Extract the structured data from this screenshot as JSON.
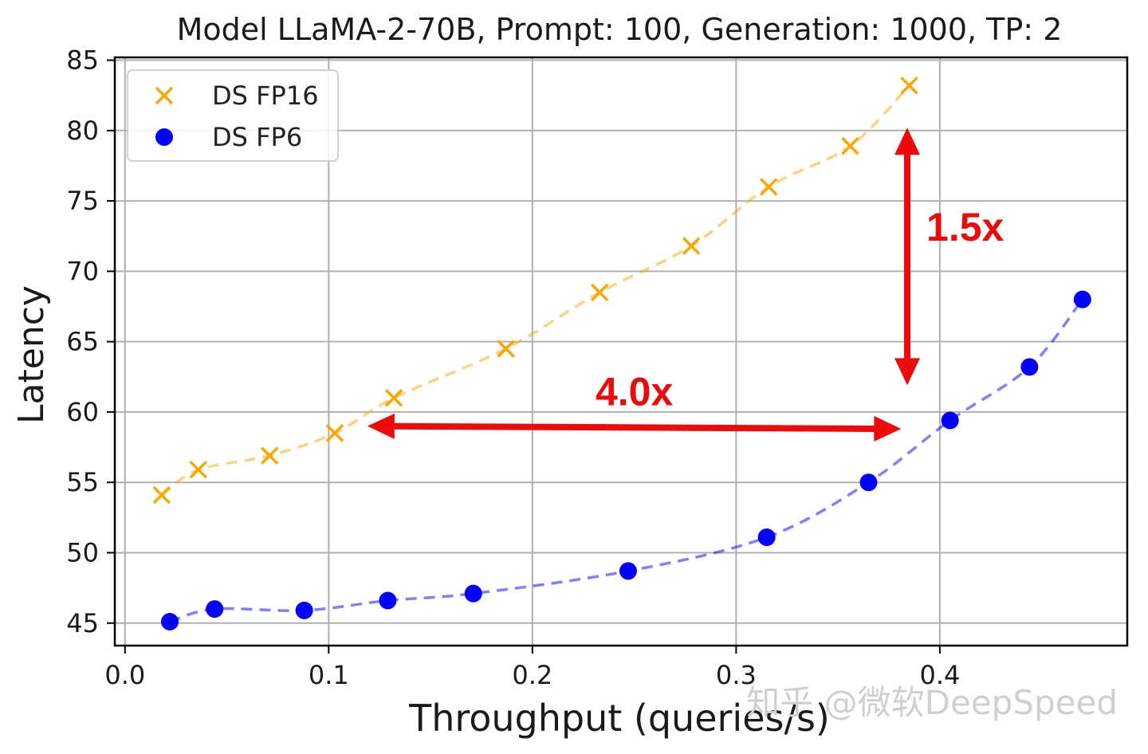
{
  "chart_data": {
    "type": "scatter",
    "title": "Model LLaMA-2-70B, Prompt: 100, Generation: 1000, TP: 2",
    "xlabel": "Throughput (queries/s)",
    "ylabel": "Latency",
    "xlim": [
      -0.005,
      0.492
    ],
    "ylim": [
      43.4,
      85.2
    ],
    "xticks": [
      0.0,
      0.1,
      0.2,
      0.3,
      0.4
    ],
    "xtick_labels": [
      "0.0",
      "0.1",
      "0.2",
      "0.3",
      "0.4"
    ],
    "yticks": [
      45,
      50,
      55,
      60,
      65,
      70,
      75,
      80,
      85
    ],
    "ytick_labels": [
      "45",
      "50",
      "55",
      "60",
      "65",
      "70",
      "75",
      "80",
      "85"
    ],
    "grid": true,
    "legend_position": "top-left",
    "series": [
      {
        "name": "DS FP16",
        "marker": "x",
        "color": "#ffa500",
        "fit_line": "dashed",
        "x": [
          0.018,
          0.036,
          0.071,
          0.103,
          0.132,
          0.187,
          0.233,
          0.278,
          0.316,
          0.356,
          0.385
        ],
        "y": [
          54.1,
          55.9,
          56.9,
          58.5,
          61.0,
          64.5,
          68.5,
          71.8,
          76.0,
          78.9,
          83.2
        ]
      },
      {
        "name": "DS FP6",
        "marker": "circle",
        "color": "#0000ff",
        "fit_line": "dashed",
        "x": [
          0.022,
          0.044,
          0.088,
          0.129,
          0.171,
          0.247,
          0.315,
          0.365,
          0.405,
          0.444,
          0.47
        ],
        "y": [
          45.1,
          46.0,
          45.9,
          46.6,
          47.1,
          48.7,
          51.1,
          55.0,
          59.4,
          63.2,
          68.0
        ]
      }
    ],
    "annotations": [
      {
        "text": "4.0x",
        "color": "#ee0a0a",
        "arrow": "horizontal double-headed",
        "from": [
          0.119,
          59.0
        ],
        "to": [
          0.381,
          58.8
        ]
      },
      {
        "text": "1.5x",
        "color": "#ee0a0a",
        "arrow": "vertical double-headed",
        "from": [
          0.384,
          80.2
        ],
        "to": [
          0.384,
          61.9
        ]
      }
    ]
  },
  "watermark": "知乎 @微软DeepSpeed"
}
